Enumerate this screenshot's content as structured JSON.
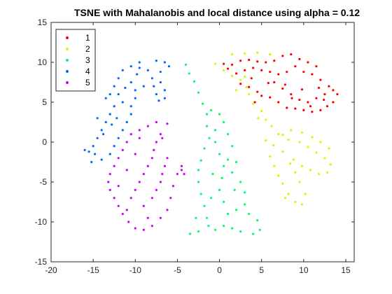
{
  "chart_data": {
    "type": "scatter",
    "title": "TSNE with Mahalanobis and local distance using alpha = 0.12",
    "xlabel": "",
    "ylabel": "",
    "xlim": [
      -20,
      16
    ],
    "ylim": [
      -15,
      15
    ],
    "x_ticks": [
      -20,
      -15,
      -10,
      -5,
      0,
      5,
      10,
      15
    ],
    "y_ticks": [
      -15,
      -10,
      -5,
      0,
      5,
      10,
      15
    ],
    "x_tick_labels": [
      "-20",
      "-15",
      "-10",
      "-5",
      "0",
      "5",
      "10",
      "15"
    ],
    "y_tick_labels": [
      "-15",
      "-10",
      "-5",
      "0",
      "5",
      "10",
      "15"
    ],
    "grid": false,
    "legend_position": "top-left",
    "series": [
      {
        "name": "1",
        "color": "#ff0000",
        "points": [
          [
            0.5,
            9.8
          ],
          [
            1.5,
            9.7
          ],
          [
            2.5,
            10.2
          ],
          [
            3.5,
            10.3
          ],
          [
            4.5,
            10.1
          ],
          [
            5.5,
            10.0
          ],
          [
            6.5,
            10.2
          ],
          [
            7.5,
            10.8
          ],
          [
            8.5,
            11.0
          ],
          [
            9.5,
            10.4
          ],
          [
            10.5,
            10.0
          ],
          [
            11.5,
            9.5
          ],
          [
            2.0,
            8.6
          ],
          [
            3.0,
            9.0
          ],
          [
            4.0,
            9.3
          ],
          [
            5.0,
            9.0
          ],
          [
            6.0,
            8.8
          ],
          [
            7.0,
            8.5
          ],
          [
            8.0,
            8.8
          ],
          [
            9.0,
            9.5
          ],
          [
            10.0,
            8.8
          ],
          [
            11.0,
            8.5
          ],
          [
            12.0,
            7.8
          ],
          [
            2.5,
            7.3
          ],
          [
            3.5,
            6.9
          ],
          [
            4.5,
            6.3
          ],
          [
            5.0,
            5.8
          ],
          [
            6.0,
            5.6
          ],
          [
            7.0,
            5.0
          ],
          [
            8.0,
            4.3
          ],
          [
            9.0,
            4.2
          ],
          [
            10.0,
            4.0
          ],
          [
            11.0,
            3.8
          ],
          [
            12.0,
            4.0
          ],
          [
            12.8,
            4.5
          ],
          [
            13.5,
            5.0
          ],
          [
            6.5,
            7.5
          ],
          [
            7.5,
            6.7
          ],
          [
            8.5,
            6.0
          ],
          [
            9.5,
            5.3
          ],
          [
            10.5,
            5.0
          ],
          [
            11.5,
            5.5
          ],
          [
            12.5,
            6.0
          ],
          [
            13.5,
            6.5
          ],
          [
            14.0,
            6.0
          ],
          [
            13.0,
            7.0
          ],
          [
            1.0,
            9.2
          ],
          [
            3.8,
            8.0
          ],
          [
            5.8,
            7.4
          ],
          [
            7.8,
            7.2
          ],
          [
            9.8,
            6.6
          ],
          [
            11.8,
            6.8
          ],
          [
            4.2,
            5.0
          ],
          [
            8.6,
            5.5
          ],
          [
            10.8,
            4.5
          ],
          [
            12.4,
            5.3
          ]
        ]
      },
      {
        "name": "2",
        "color": "#ccff00",
        "points": [
          [
            1.5,
            11.0
          ],
          [
            3.0,
            11.1
          ],
          [
            4.5,
            11.2
          ],
          [
            6.0,
            11.0
          ],
          [
            -0.5,
            9.8
          ],
          [
            0.5,
            9.0
          ],
          [
            1.5,
            8.3
          ],
          [
            2.5,
            7.8
          ],
          [
            3.2,
            6.9
          ],
          [
            3.5,
            6.0
          ],
          [
            4.0,
            4.8
          ],
          [
            5.0,
            3.9
          ],
          [
            5.5,
            2.8
          ],
          [
            6.2,
            2.0
          ],
          [
            7.0,
            1.0
          ],
          [
            8.2,
            0.3
          ],
          [
            9.5,
            0.0
          ],
          [
            10.5,
            -0.6
          ],
          [
            11.5,
            -1.3
          ],
          [
            12.5,
            -2.0
          ],
          [
            13.2,
            -2.8
          ],
          [
            12.8,
            -3.8
          ],
          [
            11.8,
            -4.0
          ],
          [
            10.8,
            -3.5
          ],
          [
            9.8,
            -3.0
          ],
          [
            8.8,
            -2.2
          ],
          [
            7.5,
            -1.2
          ],
          [
            6.4,
            -0.4
          ],
          [
            5.5,
            0.2
          ],
          [
            6.0,
            -1.8
          ],
          [
            6.5,
            -3.0
          ],
          [
            7.0,
            -4.2
          ],
          [
            7.5,
            -5.2
          ],
          [
            8.2,
            -6.5
          ],
          [
            9.0,
            -7.5
          ],
          [
            9.8,
            -7.8
          ],
          [
            10.2,
            -6.5
          ],
          [
            9.5,
            -5.0
          ],
          [
            9.0,
            -3.8
          ],
          [
            8.4,
            -2.7
          ],
          [
            7.5,
            0.9
          ],
          [
            8.5,
            1.5
          ],
          [
            9.8,
            1.2
          ],
          [
            11.0,
            0.6
          ],
          [
            12.0,
            0.0
          ],
          [
            13.0,
            -0.8
          ],
          [
            2.0,
            6.5
          ],
          [
            4.6,
            3.0
          ],
          [
            3.0,
            8.2
          ],
          [
            7.8,
            -7.0
          ]
        ]
      },
      {
        "name": "3",
        "color": "#00ff66",
        "points": [
          [
            -4.0,
            9.7
          ],
          [
            -3.6,
            8.6
          ],
          [
            -3.0,
            7.6
          ],
          [
            -2.5,
            6.2
          ],
          [
            -2.0,
            4.8
          ],
          [
            -1.5,
            3.5
          ],
          [
            -1.5,
            2.0
          ],
          [
            -1.2,
            0.5
          ],
          [
            -1.8,
            -0.8
          ],
          [
            -2.2,
            -2.3
          ],
          [
            -2.5,
            -3.5
          ],
          [
            -2.5,
            -5.0
          ],
          [
            -2.2,
            -6.5
          ],
          [
            -1.8,
            -8.0
          ],
          [
            -1.5,
            -9.5
          ],
          [
            -1.3,
            -10.5
          ],
          [
            -2.5,
            -11.2
          ],
          [
            -3.5,
            -11.5
          ],
          [
            -0.5,
            -11.0
          ],
          [
            0.5,
            -10.5
          ],
          [
            1.0,
            -9.0
          ],
          [
            0.5,
            -7.5
          ],
          [
            0.0,
            -6.0
          ],
          [
            0.3,
            -4.5
          ],
          [
            0.5,
            -3.0
          ],
          [
            0.0,
            -1.5
          ],
          [
            -0.5,
            0.0
          ],
          [
            -0.5,
            1.5
          ],
          [
            0.5,
            2.5
          ],
          [
            1.0,
            1.0
          ],
          [
            1.5,
            -0.5
          ],
          [
            1.0,
            -2.2
          ],
          [
            1.5,
            -3.8
          ],
          [
            2.5,
            -5.0
          ],
          [
            3.0,
            -6.3
          ],
          [
            3.0,
            -7.8
          ],
          [
            3.5,
            -9.0
          ],
          [
            4.5,
            -9.8
          ],
          [
            4.8,
            -11.0
          ],
          [
            4.0,
            -11.5
          ],
          [
            2.5,
            -11.2
          ],
          [
            1.5,
            -10.8
          ],
          [
            -1.0,
            4.0
          ],
          [
            0.0,
            3.5
          ],
          [
            -2.8,
            -9.5
          ],
          [
            2.0,
            -8.5
          ],
          [
            2.0,
            -2.5
          ],
          [
            -0.8,
            -4.0
          ],
          [
            1.8,
            -6.0
          ],
          [
            -1.0,
            -7.0
          ]
        ]
      },
      {
        "name": "4",
        "color": "#0066ff",
        "points": [
          [
            -7.5,
            10.2
          ],
          [
            -6.5,
            10.0
          ],
          [
            -9.5,
            10.0
          ],
          [
            -10.5,
            9.5
          ],
          [
            -11.5,
            9.0
          ],
          [
            -12.0,
            8.0
          ],
          [
            -12.5,
            7.0
          ],
          [
            -12.0,
            6.0
          ],
          [
            -11.5,
            5.0
          ],
          [
            -12.5,
            4.5
          ],
          [
            -13.0,
            3.5
          ],
          [
            -13.5,
            2.5
          ],
          [
            -14.0,
            1.5
          ],
          [
            -14.5,
            0.5
          ],
          [
            -15.0,
            -0.5
          ],
          [
            -15.5,
            -1.2
          ],
          [
            -16.0,
            -1.0
          ],
          [
            -15.2,
            -2.5
          ],
          [
            -14.0,
            -2.2
          ],
          [
            -13.0,
            -1.5
          ],
          [
            -12.5,
            -0.5
          ],
          [
            -12.0,
            0.5
          ],
          [
            -11.5,
            1.5
          ],
          [
            -11.0,
            2.5
          ],
          [
            -10.5,
            3.5
          ],
          [
            -10.5,
            4.5
          ],
          [
            -10.0,
            5.5
          ],
          [
            -10.0,
            6.5
          ],
          [
            -10.5,
            7.5
          ],
          [
            -9.8,
            8.5
          ],
          [
            -9.5,
            9.3
          ],
          [
            -8.5,
            9.0
          ],
          [
            -8.0,
            8.0
          ],
          [
            -7.8,
            7.0
          ],
          [
            -7.5,
            6.0
          ],
          [
            -7.2,
            5.2
          ],
          [
            -6.5,
            5.5
          ],
          [
            -6.5,
            6.5
          ],
          [
            -7.0,
            7.5
          ],
          [
            -7.0,
            8.8
          ],
          [
            -6.0,
            9.5
          ],
          [
            -13.5,
            5.5
          ],
          [
            -14.5,
            3.0
          ],
          [
            -13.8,
            1.0
          ],
          [
            -12.8,
            2.2
          ],
          [
            -11.2,
            6.8
          ],
          [
            -13.0,
            6.0
          ],
          [
            -12.2,
            3.0
          ],
          [
            -14.8,
            -1.5
          ],
          [
            -9.0,
            7.0
          ]
        ]
      },
      {
        "name": "5",
        "color": "#cc00ff",
        "points": [
          [
            -7.5,
            2.5
          ],
          [
            -6.2,
            2.3
          ],
          [
            -8.5,
            2.0
          ],
          [
            -9.5,
            1.5
          ],
          [
            -10.5,
            1.0
          ],
          [
            -11.0,
            0.0
          ],
          [
            -11.5,
            -1.0
          ],
          [
            -12.0,
            -2.0
          ],
          [
            -12.5,
            -3.0
          ],
          [
            -13.0,
            -4.0
          ],
          [
            -13.2,
            -5.0
          ],
          [
            -13.0,
            -6.0
          ],
          [
            -12.5,
            -7.0
          ],
          [
            -12.0,
            -8.0
          ],
          [
            -11.5,
            -9.0
          ],
          [
            -10.8,
            -10.0
          ],
          [
            -10.0,
            -10.8
          ],
          [
            -9.0,
            -11.0
          ],
          [
            -8.0,
            -10.5
          ],
          [
            -7.0,
            -9.5
          ],
          [
            -6.2,
            -8.5
          ],
          [
            -5.8,
            -7.0
          ],
          [
            -5.5,
            -5.5
          ],
          [
            -5.0,
            -4.0
          ],
          [
            -4.5,
            -3.0
          ],
          [
            -4.2,
            -4.0
          ],
          [
            -7.0,
            1.0
          ],
          [
            -7.5,
            0.0
          ],
          [
            -7.8,
            -1.0
          ],
          [
            -8.0,
            -2.0
          ],
          [
            -8.5,
            -3.0
          ],
          [
            -9.0,
            -4.0
          ],
          [
            -9.5,
            -5.0
          ],
          [
            -10.0,
            -6.0
          ],
          [
            -10.5,
            -7.0
          ],
          [
            -9.0,
            -8.0
          ],
          [
            -8.0,
            -7.0
          ],
          [
            -7.5,
            -6.0
          ],
          [
            -7.0,
            -5.0
          ],
          [
            -6.8,
            -4.0
          ],
          [
            -6.5,
            -3.0
          ],
          [
            -6.2,
            -2.0
          ],
          [
            -10.0,
            -1.5
          ],
          [
            -11.0,
            -3.5
          ],
          [
            -9.5,
            0.5
          ],
          [
            -12.0,
            -5.5
          ],
          [
            -11.0,
            -8.5
          ],
          [
            -8.5,
            -9.5
          ],
          [
            -6.8,
            0.5
          ],
          [
            -4.5,
            -3.5
          ]
        ]
      }
    ]
  }
}
